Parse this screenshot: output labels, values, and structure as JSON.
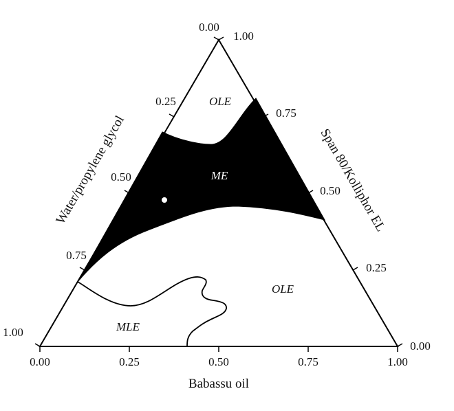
{
  "axes": {
    "left_title": "Water/propylene glycol",
    "right_title": "Span 80/Kolliphor EL",
    "bottom_title": "Babassu oil"
  },
  "ticks": {
    "bottom": [
      "0.00",
      "0.25",
      "0.50",
      "0.75",
      "1.00"
    ],
    "left": [
      "0.00",
      "0.25",
      "0.50",
      "0.75",
      "1.00"
    ],
    "right": [
      "1.00",
      "0.75",
      "0.50",
      "0.25",
      "0.00"
    ]
  },
  "regions": {
    "ole_top": "OLE",
    "me": "ME",
    "ole_right": "OLE",
    "mle": "MLE"
  },
  "colors": {
    "me_fill": "#000000",
    "me_label": "#ffffff",
    "line": "#000000"
  }
}
